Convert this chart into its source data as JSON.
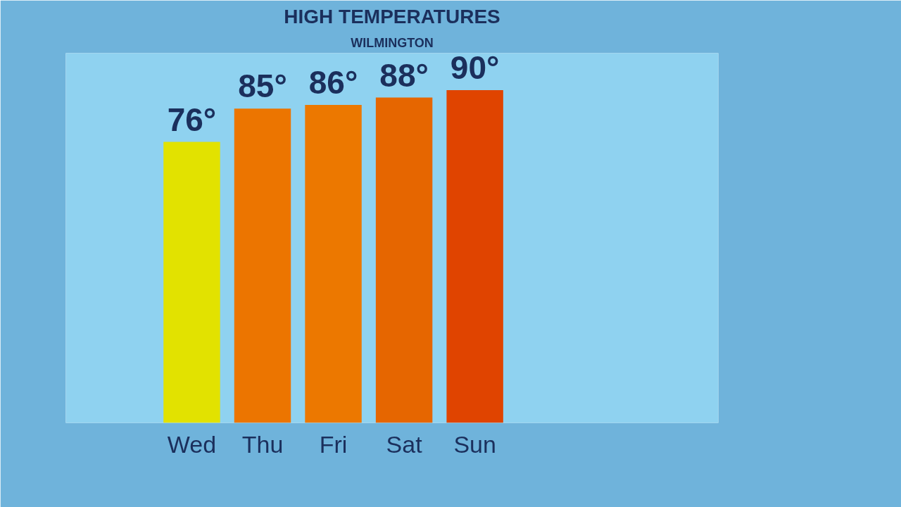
{
  "chart_data": {
    "type": "bar",
    "title": "HIGH TEMPERATURES",
    "subtitle": "WILMINGTON",
    "categories": [
      "Wed",
      "Thu",
      "Fri",
      "Sat",
      "Sun"
    ],
    "values": [
      76,
      85,
      86,
      88,
      90
    ],
    "colors": [
      "#e2e200",
      "#ec7500",
      "#ec7800",
      "#e66600",
      "#e04400"
    ],
    "value_labels": [
      "76°",
      "85°",
      "86°",
      "88°",
      "90°"
    ],
    "ylim": [
      0,
      100
    ],
    "tick_labels": "x",
    "grid": false
  }
}
